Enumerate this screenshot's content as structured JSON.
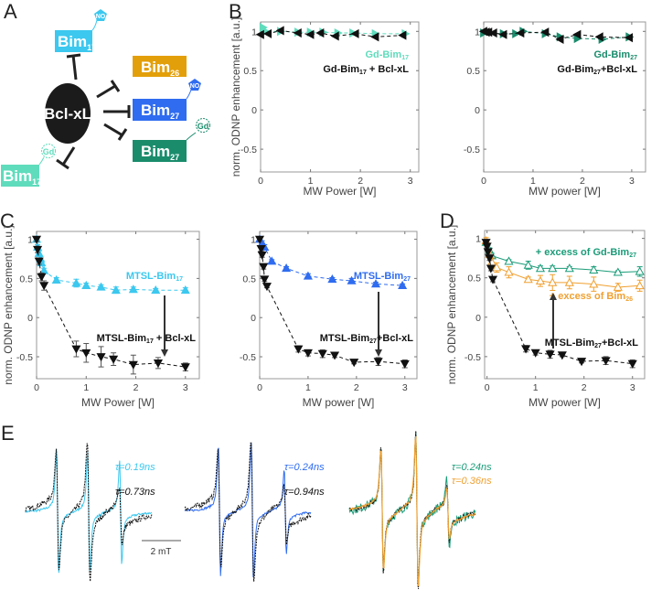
{
  "panel_labels": {
    "a": "A",
    "b": "B",
    "c": "C",
    "d": "D",
    "e": "E"
  },
  "colors": {
    "cyan": "#3cc8ef",
    "light_green": "#5fdcbc",
    "blue": "#2f6cf0",
    "dark_green": "#1a8c6c",
    "orange": "#e9a000",
    "black": "#111111"
  },
  "diagram": {
    "center": "Bcl-xL",
    "nodes": [
      {
        "name": "Bim",
        "sub": "17",
        "tag": "NO"
      },
      {
        "name": "Bim",
        "sub": "26"
      },
      {
        "name": "Bim",
        "sub": "27",
        "tag": "NO"
      },
      {
        "name": "Bim",
        "sub": "27",
        "tag": "Gd"
      },
      {
        "name": "Bim",
        "sub": "17",
        "tag": "Gd"
      }
    ]
  },
  "chart_data": [
    {
      "type": "line",
      "panel": "B-left",
      "xlabel": "MW Power [W]",
      "ylabel": "norm. ODNP enhancement [a.u.]",
      "xlim": [
        0,
        3.17
      ],
      "ylim": [
        -0.79,
        1.12
      ],
      "xticks": [
        0,
        1,
        2,
        3
      ],
      "yticks": [
        -0.5,
        0,
        0.5,
        1
      ],
      "series": [
        {
          "name": "Gd-Bim17",
          "color": "#5fdcbc",
          "marker": "triangle-right",
          "filled": true,
          "x": [
            0.05,
            0.1,
            0.4,
            0.75,
            1.0,
            1.25,
            1.55,
            1.85,
            2.3,
            2.9
          ],
          "y": [
            1.05,
            1.0,
            1.0,
            0.99,
            0.99,
            0.99,
            0.98,
            0.98,
            0.97,
            0.97
          ]
        },
        {
          "name": "Gd-Bim17 + Bcl-xL",
          "color": "#111111",
          "marker": "triangle-left",
          "filled": true,
          "x": [
            0.0,
            0.15,
            0.4,
            0.75,
            1.0,
            1.2,
            1.5,
            1.9,
            2.3,
            2.85
          ],
          "y": [
            0.96,
            0.97,
            1.01,
            0.98,
            0.96,
            0.98,
            0.94,
            0.97,
            0.93,
            0.95
          ]
        }
      ],
      "annotations": [
        {
          "text": "Gd-Bim",
          "sub": "17",
          "suffix": ""
        },
        {
          "text": "Gd-Bim",
          "sub": "17",
          "suffix": " + Bcl-xL"
        }
      ]
    },
    {
      "type": "line",
      "panel": "B-right",
      "xlabel": "MW power [W]",
      "ylabel": "",
      "xlim": [
        0,
        3.28
      ],
      "ylim": [
        -0.79,
        1.12
      ],
      "xticks": [
        0,
        1,
        2,
        3
      ],
      "yticks": [
        -0.5,
        0,
        0.5,
        1
      ],
      "series": [
        {
          "name": "Gd-Bim27",
          "color": "#1a8c6c",
          "marker": "triangle-right",
          "filled": true,
          "x": [
            0.0,
            0.4,
            0.65,
            0.8,
            1.25,
            1.55,
            1.9,
            2.4,
            2.95
          ],
          "y": [
            0.98,
            0.97,
            0.97,
            1.0,
            0.97,
            0.93,
            0.91,
            0.9,
            0.93
          ]
        },
        {
          "name": "Gd-Bim27+Bcl-xL",
          "color": "#111111",
          "marker": "triangle-left",
          "filled": true,
          "x": [
            0.0,
            0.05,
            0.1,
            0.2,
            0.4,
            0.75,
            1.25,
            1.55,
            1.9,
            2.35,
            2.95
          ],
          "y": [
            1.0,
            0.99,
            0.99,
            0.98,
            0.96,
            0.98,
            0.99,
            0.9,
            0.96,
            0.93,
            0.92
          ]
        }
      ],
      "annotations": [
        {
          "text": "Gd-Bim",
          "sub": "27",
          "suffix": ""
        },
        {
          "text": "Gd-Bim",
          "sub": "27",
          "suffix": "+Bcl-xL"
        }
      ]
    },
    {
      "type": "line",
      "panel": "C-left",
      "xlabel": "MW Power [W]",
      "ylabel": "norm. ODNP enhancement [a.u.]",
      "xlim": [
        0,
        3.28
      ],
      "ylim": [
        -0.78,
        1.1
      ],
      "xticks": [
        0,
        1,
        2,
        3
      ],
      "yticks": [
        -0.5,
        0,
        0.5,
        1
      ],
      "series": [
        {
          "name": "MTSL-Bim17",
          "color": "#3cc8ef",
          "marker": "triangle-up",
          "filled": true,
          "x": [
            0,
            0.02,
            0.05,
            0.08,
            0.1,
            0.15,
            0.4,
            0.8,
            1.0,
            1.3,
            1.6,
            1.95,
            2.4,
            3.0
          ],
          "y": [
            1.0,
            0.9,
            0.82,
            0.75,
            0.7,
            0.6,
            0.48,
            0.44,
            0.41,
            0.39,
            0.35,
            0.36,
            0.35,
            0.35
          ],
          "err": [
            0.03,
            0.03,
            0.03,
            0.03,
            0.03,
            0.03,
            0.03,
            0.05,
            0.03,
            0.03,
            0.04,
            0.03,
            0.02,
            0.03
          ]
        },
        {
          "name": "MTSL-Bim17 + Bcl-xL",
          "color": "#111111",
          "marker": "triangle-down",
          "filled": true,
          "x": [
            0,
            0.02,
            0.05,
            0.1,
            0.15,
            0.8,
            1.0,
            1.3,
            1.55,
            1.95,
            2.45,
            3.0
          ],
          "y": [
            1.0,
            0.87,
            0.72,
            0.52,
            0.41,
            -0.4,
            -0.45,
            -0.5,
            -0.53,
            -0.6,
            -0.58,
            -0.63
          ],
          "err": [
            0.03,
            0.04,
            0.04,
            0.05,
            0.06,
            0.1,
            0.12,
            0.13,
            0.08,
            0.12,
            0.07,
            0.05
          ]
        }
      ],
      "annotations": [
        {
          "text": "MTSL-Bim",
          "sub": "17",
          "suffix": ""
        },
        {
          "text": "MTSL-Bim",
          "sub": "17",
          "suffix": " + Bcl-xL"
        }
      ]
    },
    {
      "type": "line",
      "panel": "C-right",
      "xlabel": "MW power [W]",
      "ylabel": "",
      "xlim": [
        0,
        3.25
      ],
      "ylim": [
        -0.78,
        1.1
      ],
      "xticks": [
        0,
        1,
        2,
        3
      ],
      "yticks": [
        -0.5,
        0,
        0.5,
        1
      ],
      "series": [
        {
          "name": "MTSL-Bim27",
          "color": "#2f6cf0",
          "marker": "triangle-up",
          "filled": true,
          "x": [
            0,
            0.05,
            0.1,
            0.25,
            0.55,
            1.0,
            1.5,
            1.9,
            2.4,
            2.95
          ],
          "y": [
            1.0,
            0.95,
            0.9,
            0.72,
            0.63,
            0.53,
            0.49,
            0.47,
            0.43,
            0.41
          ],
          "err": [
            0.03,
            0.03,
            0.03,
            0.02,
            0.02,
            0.03,
            0.02,
            0.03,
            0.02,
            0.02
          ]
        },
        {
          "name": "MTSL-Bim27+Bcl-xL",
          "color": "#111111",
          "marker": "triangle-down",
          "filled": true,
          "x": [
            0,
            0.03,
            0.05,
            0.08,
            0.1,
            0.15,
            0.8,
            1.0,
            1.3,
            1.55,
            1.95,
            2.45,
            3.0
          ],
          "y": [
            1.0,
            0.88,
            0.8,
            0.65,
            0.49,
            0.4,
            -0.4,
            -0.45,
            -0.46,
            -0.48,
            -0.57,
            -0.56,
            -0.59
          ],
          "err": [
            0.03,
            0.03,
            0.03,
            0.03,
            0.03,
            0.02,
            0.04,
            0.04,
            0.05,
            0.03,
            0.02,
            0.05,
            0.05
          ]
        }
      ],
      "annotations": [
        {
          "text": "MTSL-Bim",
          "sub": "27",
          "suffix": ""
        },
        {
          "text": "MTSL-Bim",
          "sub": "27",
          "suffix": "+Bcl-xL"
        }
      ]
    },
    {
      "type": "line",
      "panel": "D",
      "xlabel": "MW power [W]",
      "ylabel": "norm. ODNP enhancement [a.u.]",
      "xlim": [
        -0.05,
        3.25
      ],
      "ylim": [
        -0.78,
        1.1
      ],
      "xticks": [
        0,
        1,
        2,
        3
      ],
      "yticks": [
        -0.5,
        0,
        0.5,
        1
      ],
      "series": [
        {
          "name": "+ excess of Gd-Bim27",
          "color": "#1a9c78",
          "marker": "triangle-up",
          "filled": false,
          "solid": true,
          "x": [
            -0.02,
            0.05,
            0.1,
            0.45,
            0.85,
            1.1,
            1.35,
            1.7,
            2.2,
            2.7,
            3.15
          ],
          "y": [
            0.95,
            0.85,
            0.78,
            0.71,
            0.66,
            0.62,
            0.62,
            0.62,
            0.6,
            0.57,
            0.58
          ],
          "err": [
            0.03,
            0.03,
            0.03,
            0.02,
            0.05,
            0.03,
            0.03,
            0.02,
            0.04,
            0.02,
            0.06
          ]
        },
        {
          "name": "+ excess of Bim26",
          "color": "#f0a030",
          "marker": "triangle-up",
          "filled": false,
          "solid": true,
          "x": [
            -0.02,
            0.05,
            0.1,
            0.2,
            0.45,
            0.85,
            1.1,
            1.35,
            1.7,
            2.2,
            2.7,
            3.15
          ],
          "y": [
            0.97,
            0.8,
            0.7,
            0.63,
            0.57,
            0.48,
            0.46,
            0.44,
            0.44,
            0.42,
            0.38,
            0.4
          ],
          "err": [
            0.04,
            0.04,
            0.05,
            0.06,
            0.07,
            0.03,
            0.07,
            0.1,
            0.08,
            0.09,
            0.05,
            0.07
          ]
        },
        {
          "name": "MTSL-Bim27+Bcl-xL",
          "color": "#111111",
          "marker": "triangle-down",
          "filled": true,
          "x": [
            -0.02,
            0.0,
            0.02,
            0.05,
            0.08,
            0.12,
            0.8,
            1.0,
            1.3,
            1.55,
            1.95,
            2.45,
            3.0
          ],
          "y": [
            0.95,
            0.9,
            0.83,
            0.75,
            0.62,
            0.48,
            -0.4,
            -0.45,
            -0.47,
            -0.48,
            -0.56,
            -0.55,
            -0.59
          ],
          "err": [
            0.03,
            0.03,
            0.03,
            0.03,
            0.03,
            0.03,
            0.04,
            0.03,
            0.05,
            0.02,
            0.02,
            0.05,
            0.05
          ]
        }
      ],
      "annotations": [
        {
          "text": "+ excess of Gd-Bim",
          "sub": "27",
          "suffix": ""
        },
        {
          "text": "+ excess of Bim",
          "sub": "26",
          "suffix": ""
        },
        {
          "text": "MTSL-Bim",
          "sub": "27",
          "suffix": "+Bcl-xL"
        }
      ]
    },
    {
      "type": "line",
      "panel": "E",
      "scale_bar": "2 mT",
      "spectra": [
        {
          "series": [
            {
              "name": "MTSL-Bim17",
              "color": "#3cc8ef",
              "tau": "τ=0.19ns"
            },
            {
              "name": "MTSL-Bim17 + Bcl-xL",
              "color": "#111111",
              "tau": "τ=0.73ns"
            }
          ]
        },
        {
          "series": [
            {
              "name": "MTSL-Bim27",
              "color": "#2f6cf0",
              "tau": "τ=0.24ns"
            },
            {
              "name": "MTSL-Bim27+Bcl-xL",
              "color": "#111111",
              "tau": "τ=0.94ns"
            }
          ]
        },
        {
          "series": [
            {
              "name": "+ excess of Gd-Bim27",
              "color": "#1a9c78",
              "tau": "τ=0.24ns"
            },
            {
              "name": "+ excess of Bim26",
              "color": "#f0a030",
              "tau": "τ=0.36ns"
            }
          ]
        }
      ]
    }
  ]
}
